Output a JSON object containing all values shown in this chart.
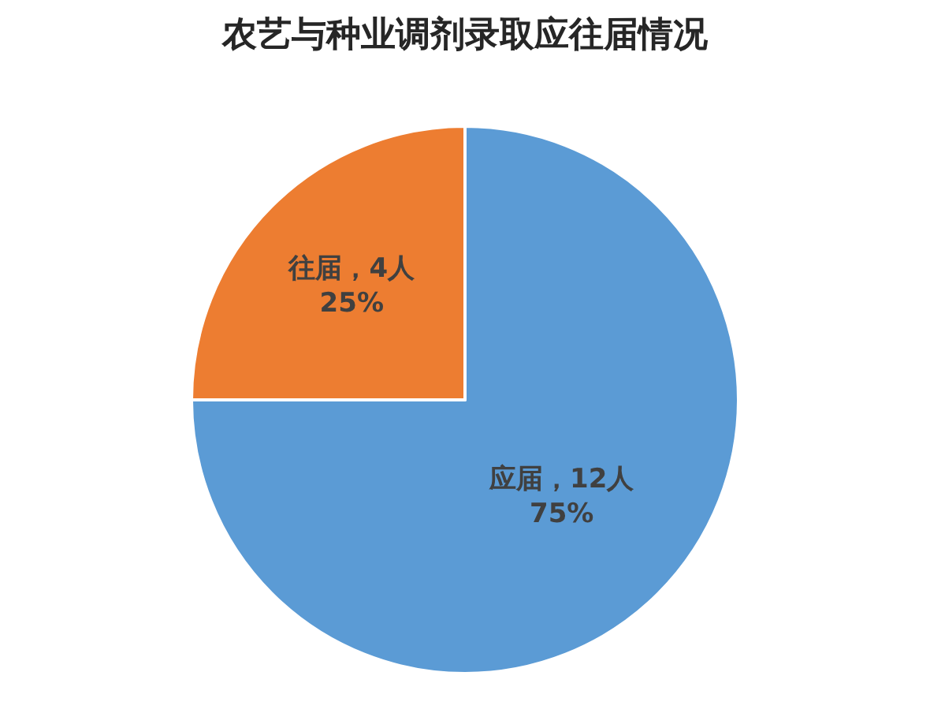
{
  "chart_data": {
    "type": "pie",
    "title": "农艺与种业调剂录取应往届情况",
    "categories": [
      "应届",
      "往届"
    ],
    "values": [
      12,
      4
    ],
    "colors": [
      "#5b9bd5",
      "#ed7d31"
    ],
    "value_labels": [
      "，12人\n75%",
      "，4人\n25%"
    ],
    "legend": false
  }
}
